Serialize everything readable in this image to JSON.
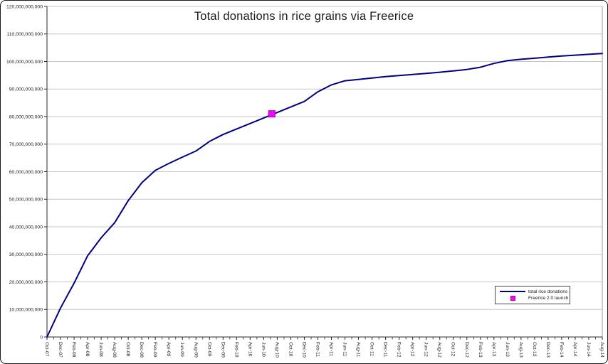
{
  "chart_data": {
    "type": "line",
    "title": "Total donations in rice grains via Freerice",
    "xlabel": "",
    "ylabel": "",
    "ylim": [
      0,
      120000000000
    ],
    "y_tick_step": 10000000000,
    "grid": "horizontal",
    "legend_position": "bottom-right",
    "y_tick_labels": [
      "0",
      "10,000,000,000",
      "20,000,000,000",
      "30,000,000,000",
      "40,000,000,000",
      "50,000,000,000",
      "60,000,000,000",
      "70,000,000,000",
      "80,000,000,000",
      "90,000,000,000",
      "100,000,000,000",
      "110,000,000,000",
      "120,000,000,000"
    ],
    "x_tick_labels": [
      "Oct-07",
      "Dec-07",
      "Feb-08",
      "Apr-08",
      "Jun-08",
      "Aug-08",
      "Oct-08",
      "Dec-08",
      "Feb-09",
      "Apr-09",
      "Jun-09",
      "Aug-09",
      "Oct-09",
      "Dec-09",
      "Feb-10",
      "Apr-10",
      "Jun-10",
      "Aug-10",
      "Oct-10",
      "Dec-10",
      "Feb-11",
      "Apr-11",
      "Jun-11",
      "Aug-11",
      "Oct-11",
      "Dec-11",
      "Feb-12",
      "Apr-12",
      "Jun-12",
      "Aug-12",
      "Oct-12",
      "Dec-12",
      "Feb-13",
      "Apr-13",
      "Jun-13",
      "Aug-13",
      "Oct-13",
      "Dec-13",
      "Feb-14",
      "Apr-14",
      "Jun-14",
      "Aug-14"
    ],
    "series": [
      {
        "name": "total rice donations",
        "color": "#000080",
        "values": [
          0,
          10500000000,
          19500000000,
          29500000000,
          36000000000,
          41500000000,
          49500000000,
          56000000000,
          60500000000,
          63000000000,
          65300000000,
          67500000000,
          71000000000,
          73500000000,
          75500000000,
          77500000000,
          79500000000,
          81500000000,
          83500000000,
          85500000000,
          89000000000,
          91500000000,
          93000000000,
          93500000000,
          94000000000,
          94500000000,
          94900000000,
          95300000000,
          95700000000,
          96100000000,
          96600000000,
          97100000000,
          97900000000,
          99300000000,
          100300000000,
          100800000000,
          101200000000,
          101600000000,
          102000000000,
          102300000000,
          102600000000,
          102900000000
        ]
      }
    ],
    "marker": {
      "name": "Freerice 2.0 launch",
      "color": "#ff00ff",
      "x_label": "Jul-10",
      "x_index": 16.6,
      "value": 81000000000
    },
    "colors": {
      "gridline": "#c6c6c6",
      "plot_border": "#9a9a9a",
      "axis": "#2a2a2a",
      "text": "#1a1a1a",
      "background": "#ffffff"
    }
  }
}
